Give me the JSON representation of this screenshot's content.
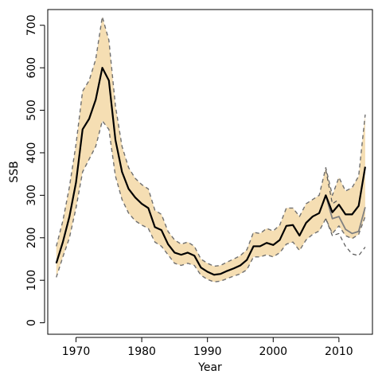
{
  "chart_data": {
    "type": "line",
    "title": "",
    "xlabel": "Year",
    "ylabel": "SSB",
    "xlim": [
      1965.7,
      2015.1
    ],
    "ylim": [
      -27,
      737
    ],
    "x_ticks": [
      1970,
      1980,
      1990,
      2000,
      2010
    ],
    "y_ticks": [
      0,
      100,
      200,
      300,
      400,
      500,
      600,
      700
    ],
    "grid": false,
    "legend": "none",
    "colors": {
      "band": "#f5deb3",
      "main": "#000000",
      "main_bounds": "#707070",
      "alt": "#808080",
      "alt_dashed": "#555555",
      "axis": "#000000"
    },
    "x": [
      1967,
      1968,
      1969,
      1970,
      1971,
      1972,
      1973,
      1974,
      1975,
      1976,
      1977,
      1978,
      1979,
      1980,
      1981,
      1982,
      1983,
      1984,
      1985,
      1986,
      1987,
      1988,
      1989,
      1990,
      1991,
      1992,
      1993,
      1994,
      1995,
      1996,
      1997,
      1998,
      1999,
      2000,
      2001,
      2002,
      2003,
      2004,
      2005,
      2006,
      2007,
      2008,
      2009,
      2010,
      2011,
      2012,
      2013,
      2014
    ],
    "series": [
      {
        "role": "ssb_estimate",
        "values": [
          140,
          190,
          250,
          330,
          455,
          480,
          525,
          600,
          570,
          430,
          355,
          315,
          295,
          280,
          270,
          225,
          218,
          185,
          165,
          160,
          165,
          158,
          130,
          120,
          113,
          115,
          122,
          128,
          135,
          148,
          180,
          180,
          188,
          183,
          195,
          228,
          230,
          205,
          235,
          250,
          258,
          300,
          260,
          278,
          255,
          255,
          275,
          367
        ]
      },
      {
        "role": "ssb_upper",
        "values": [
          180,
          240,
          320,
          420,
          545,
          570,
          620,
          720,
          665,
          510,
          415,
          365,
          340,
          325,
          315,
          265,
          255,
          215,
          195,
          185,
          190,
          180,
          150,
          140,
          133,
          135,
          143,
          150,
          158,
          172,
          213,
          210,
          222,
          216,
          230,
          270,
          270,
          250,
          280,
          290,
          300,
          365,
          300,
          342,
          310,
          318,
          345,
          490
        ]
      },
      {
        "role": "ssb_lower",
        "values": [
          107,
          155,
          200,
          270,
          355,
          385,
          415,
          475,
          455,
          345,
          290,
          258,
          240,
          230,
          222,
          190,
          180,
          160,
          140,
          135,
          140,
          135,
          112,
          102,
          96,
          98,
          104,
          110,
          115,
          125,
          155,
          155,
          160,
          155,
          165,
          185,
          190,
          170,
          195,
          208,
          216,
          245,
          210,
          228,
          205,
          198,
          208,
          250
        ]
      },
      {
        "role": "alt_estimate",
        "values": [
          null,
          null,
          null,
          null,
          null,
          null,
          null,
          null,
          null,
          null,
          null,
          null,
          null,
          null,
          null,
          null,
          null,
          null,
          null,
          null,
          null,
          null,
          null,
          null,
          null,
          null,
          null,
          null,
          null,
          null,
          null,
          null,
          null,
          null,
          null,
          null,
          null,
          null,
          null,
          null,
          null,
          300,
          245,
          250,
          220,
          210,
          215,
          272
        ]
      },
      {
        "role": "alt_upper",
        "values": [
          null,
          null,
          null,
          null,
          null,
          null,
          null,
          null,
          null,
          null,
          null,
          null,
          null,
          null,
          null,
          null,
          null,
          null,
          null,
          null,
          null,
          null,
          null,
          null,
          null,
          null,
          null,
          null,
          null,
          null,
          null,
          null,
          null,
          null,
          null,
          null,
          null,
          null,
          null,
          null,
          null,
          360,
          280,
          290,
          null,
          null,
          null,
          null
        ]
      },
      {
        "role": "alt_lower",
        "values": [
          null,
          null,
          null,
          null,
          null,
          null,
          null,
          null,
          null,
          null,
          null,
          null,
          null,
          null,
          null,
          null,
          null,
          null,
          null,
          null,
          null,
          null,
          null,
          null,
          null,
          null,
          null,
          null,
          null,
          null,
          null,
          null,
          null,
          null,
          null,
          null,
          null,
          null,
          null,
          null,
          null,
          245,
          205,
          210,
          180,
          162,
          158,
          178
        ]
      }
    ]
  }
}
